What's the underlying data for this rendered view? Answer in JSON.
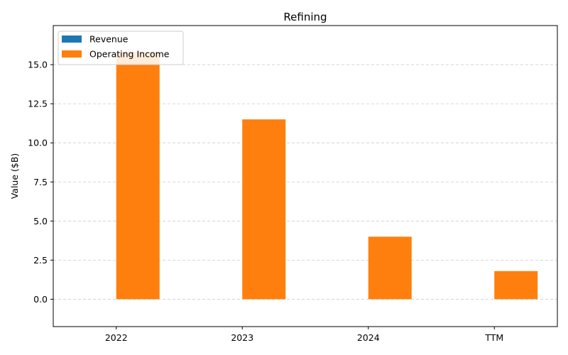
{
  "chart_data": {
    "type": "bar",
    "title": "Refining",
    "xlabel": "",
    "ylabel": "Value ($B)",
    "categories": [
      "2022",
      "2023",
      "2024",
      "TTM"
    ],
    "series": [
      {
        "name": "Revenue",
        "values": [
          0,
          0,
          0,
          0
        ],
        "color": "#1f77b4"
      },
      {
        "name": "Operating Income",
        "values": [
          15.8,
          11.5,
          4.0,
          1.8
        ],
        "color": "#ff7f0e"
      }
    ],
    "ylim": [
      -1.75,
      17.5
    ],
    "yticks": [
      0.0,
      2.5,
      5.0,
      7.5,
      10.0,
      12.5,
      15.0
    ],
    "ytick_labels": [
      "0.0",
      "2.5",
      "5.0",
      "7.5",
      "10.0",
      "12.5",
      "15.0"
    ],
    "grid": "y-dashed",
    "legend_position": "top-left"
  }
}
